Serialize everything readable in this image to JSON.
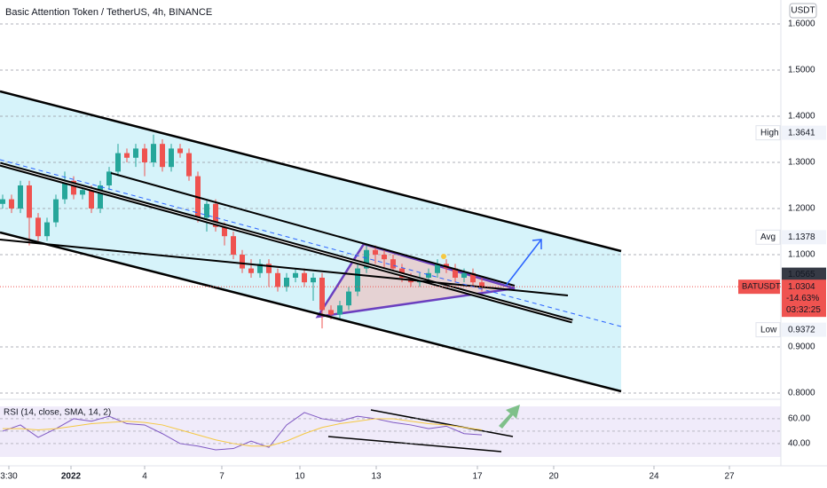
{
  "chart_data": {
    "type": "candlestick",
    "title": "Basic Attention Token / TetherUS, 4h, BINANCE",
    "currency": "USDT",
    "up_color": "#26a69a",
    "down_color": "#ef5350",
    "xlim": [
      -0.3,
      87.7
    ],
    "ylim": [
      0.7865,
      1.6519
    ],
    "yticks": [
      {
        "value": 1.6,
        "label": "1.6000"
      },
      {
        "value": 1.5,
        "label": "1.5000"
      },
      {
        "value": 1.4,
        "label": "1.4000"
      },
      {
        "value": 1.3,
        "label": "1.3000"
      },
      {
        "value": 1.2,
        "label": "1.2000"
      },
      {
        "value": 1.1,
        "label": "1.1000"
      },
      {
        "value": 0.9,
        "label": "0.9000"
      },
      {
        "value": 0.8,
        "label": "0.8000"
      }
    ],
    "grid": true,
    "xticks": [
      {
        "value": 0.7,
        "label": "3:30"
      },
      {
        "value": 7.7,
        "label": "2022"
      },
      {
        "value": 16,
        "label": "4"
      },
      {
        "value": 24.7,
        "label": "7"
      },
      {
        "value": 33.5,
        "label": "10"
      },
      {
        "value": 42.1,
        "label": "13"
      },
      {
        "value": 53.5,
        "label": "17"
      },
      {
        "value": 62.1,
        "label": "20"
      },
      {
        "value": 73.4,
        "label": "24"
      },
      {
        "value": 81.9,
        "label": "27"
      }
    ],
    "candles": [
      [
        1.21,
        1.23,
        1.2,
        1.22
      ],
      [
        1.22,
        1.23,
        1.19,
        1.2
      ],
      [
        1.2,
        1.26,
        1.19,
        1.25
      ],
      [
        1.25,
        1.26,
        1.12,
        1.18
      ],
      [
        1.18,
        1.19,
        1.13,
        1.14
      ],
      [
        1.14,
        1.18,
        1.13,
        1.17
      ],
      [
        1.17,
        1.23,
        1.16,
        1.22
      ],
      [
        1.22,
        1.28,
        1.21,
        1.26
      ],
      [
        1.26,
        1.27,
        1.22,
        1.23
      ],
      [
        1.23,
        1.25,
        1.22,
        1.24
      ],
      [
        1.24,
        1.25,
        1.19,
        1.2
      ],
      [
        1.2,
        1.26,
        1.19,
        1.25
      ],
      [
        1.25,
        1.29,
        1.24,
        1.28
      ],
      [
        1.28,
        1.34,
        1.27,
        1.32
      ],
      [
        1.32,
        1.33,
        1.3,
        1.31
      ],
      [
        1.31,
        1.34,
        1.29,
        1.33
      ],
      [
        1.33,
        1.34,
        1.27,
        1.3
      ],
      [
        1.3,
        1.36,
        1.29,
        1.34
      ],
      [
        1.34,
        1.35,
        1.28,
        1.29
      ],
      [
        1.29,
        1.34,
        1.28,
        1.33
      ],
      [
        1.33,
        1.34,
        1.31,
        1.32
      ],
      [
        1.32,
        1.33,
        1.26,
        1.27
      ],
      [
        1.27,
        1.28,
        1.17,
        1.18
      ],
      [
        1.18,
        1.22,
        1.15,
        1.21
      ],
      [
        1.21,
        1.22,
        1.15,
        1.16
      ],
      [
        1.16,
        1.17,
        1.12,
        1.14
      ],
      [
        1.14,
        1.15,
        1.09,
        1.1
      ],
      [
        1.1,
        1.11,
        1.06,
        1.07
      ],
      [
        1.07,
        1.09,
        1.05,
        1.06
      ],
      [
        1.06,
        1.09,
        1.05,
        1.08
      ],
      [
        1.08,
        1.09,
        1.03,
        1.06
      ],
      [
        1.06,
        1.07,
        1.02,
        1.03
      ],
      [
        1.03,
        1.06,
        1.02,
        1.05
      ],
      [
        1.05,
        1.07,
        1.04,
        1.06
      ],
      [
        1.06,
        1.07,
        1.03,
        1.04
      ],
      [
        1.04,
        1.06,
        1.0,
        1.05
      ],
      [
        1.05,
        1.06,
        0.94,
        0.98
      ],
      [
        0.98,
        0.99,
        0.96,
        0.97
      ],
      [
        0.97,
        1.0,
        0.96,
        0.99
      ],
      [
        0.99,
        1.03,
        0.98,
        1.02
      ],
      [
        1.02,
        1.08,
        1.01,
        1.07
      ],
      [
        1.07,
        1.12,
        1.06,
        1.11
      ],
      [
        1.11,
        1.12,
        1.08,
        1.1
      ],
      [
        1.1,
        1.11,
        1.07,
        1.09
      ],
      [
        1.09,
        1.1,
        1.06,
        1.07
      ],
      [
        1.07,
        1.08,
        1.04,
        1.05
      ],
      [
        1.05,
        1.06,
        1.03,
        1.04
      ],
      [
        1.04,
        1.06,
        1.03,
        1.05
      ],
      [
        1.05,
        1.07,
        1.04,
        1.06
      ],
      [
        1.06,
        1.09,
        1.05,
        1.08
      ],
      [
        1.08,
        1.09,
        1.06,
        1.07
      ],
      [
        1.07,
        1.08,
        1.04,
        1.05
      ],
      [
        1.05,
        1.07,
        1.04,
        1.06
      ],
      [
        1.06,
        1.07,
        1.03,
        1.04
      ],
      [
        1.04,
        1.05,
        1.02,
        1.03
      ]
    ],
    "high": {
      "label": "High",
      "value": 1.3641,
      "value_label": "1.3641"
    },
    "avg": {
      "label": "Avg",
      "value": 1.1378,
      "value_label": "1.1378"
    },
    "low": {
      "label": "Low",
      "value": 0.9372,
      "value_label": "0.9372"
    },
    "last": {
      "value": 1.0565,
      "value_label": "1.0565"
    },
    "current": {
      "name": "BATUSDT",
      "value": 1.0304,
      "value_label": "1.0304",
      "change": "-14.63%",
      "countdown": "03:32:25"
    },
    "rsi": {
      "title": "RSI (14, close, SMA, 14, 2)",
      "ylim": [
        27.1,
        72.1
      ],
      "yticks": [
        {
          "value": 60,
          "label": "60.00"
        },
        {
          "value": 40,
          "label": "40.00"
        }
      ],
      "x": [
        0,
        2,
        4,
        6,
        8,
        10,
        12,
        14,
        16,
        18,
        20,
        22,
        24,
        26,
        28,
        30,
        32,
        34,
        36,
        38,
        40,
        42,
        44,
        46,
        48,
        50,
        52,
        54
      ],
      "series": [
        {
          "name": "RSI",
          "color": "#7e57c2",
          "values": [
            50,
            55,
            45,
            52,
            60,
            58,
            62,
            56,
            55,
            48,
            40,
            38,
            35,
            36,
            42,
            37,
            55,
            65,
            60,
            58,
            62,
            60,
            57,
            55,
            52,
            54,
            48,
            47
          ]
        },
        {
          "name": "SMA",
          "color": "#f5c842",
          "values": [
            52,
            52,
            51,
            52,
            54,
            56,
            57,
            58,
            57,
            55,
            51,
            47,
            43,
            40,
            38,
            38,
            42,
            48,
            53,
            56,
            58,
            60,
            60,
            58,
            56,
            55,
            53,
            51
          ]
        }
      ]
    }
  }
}
